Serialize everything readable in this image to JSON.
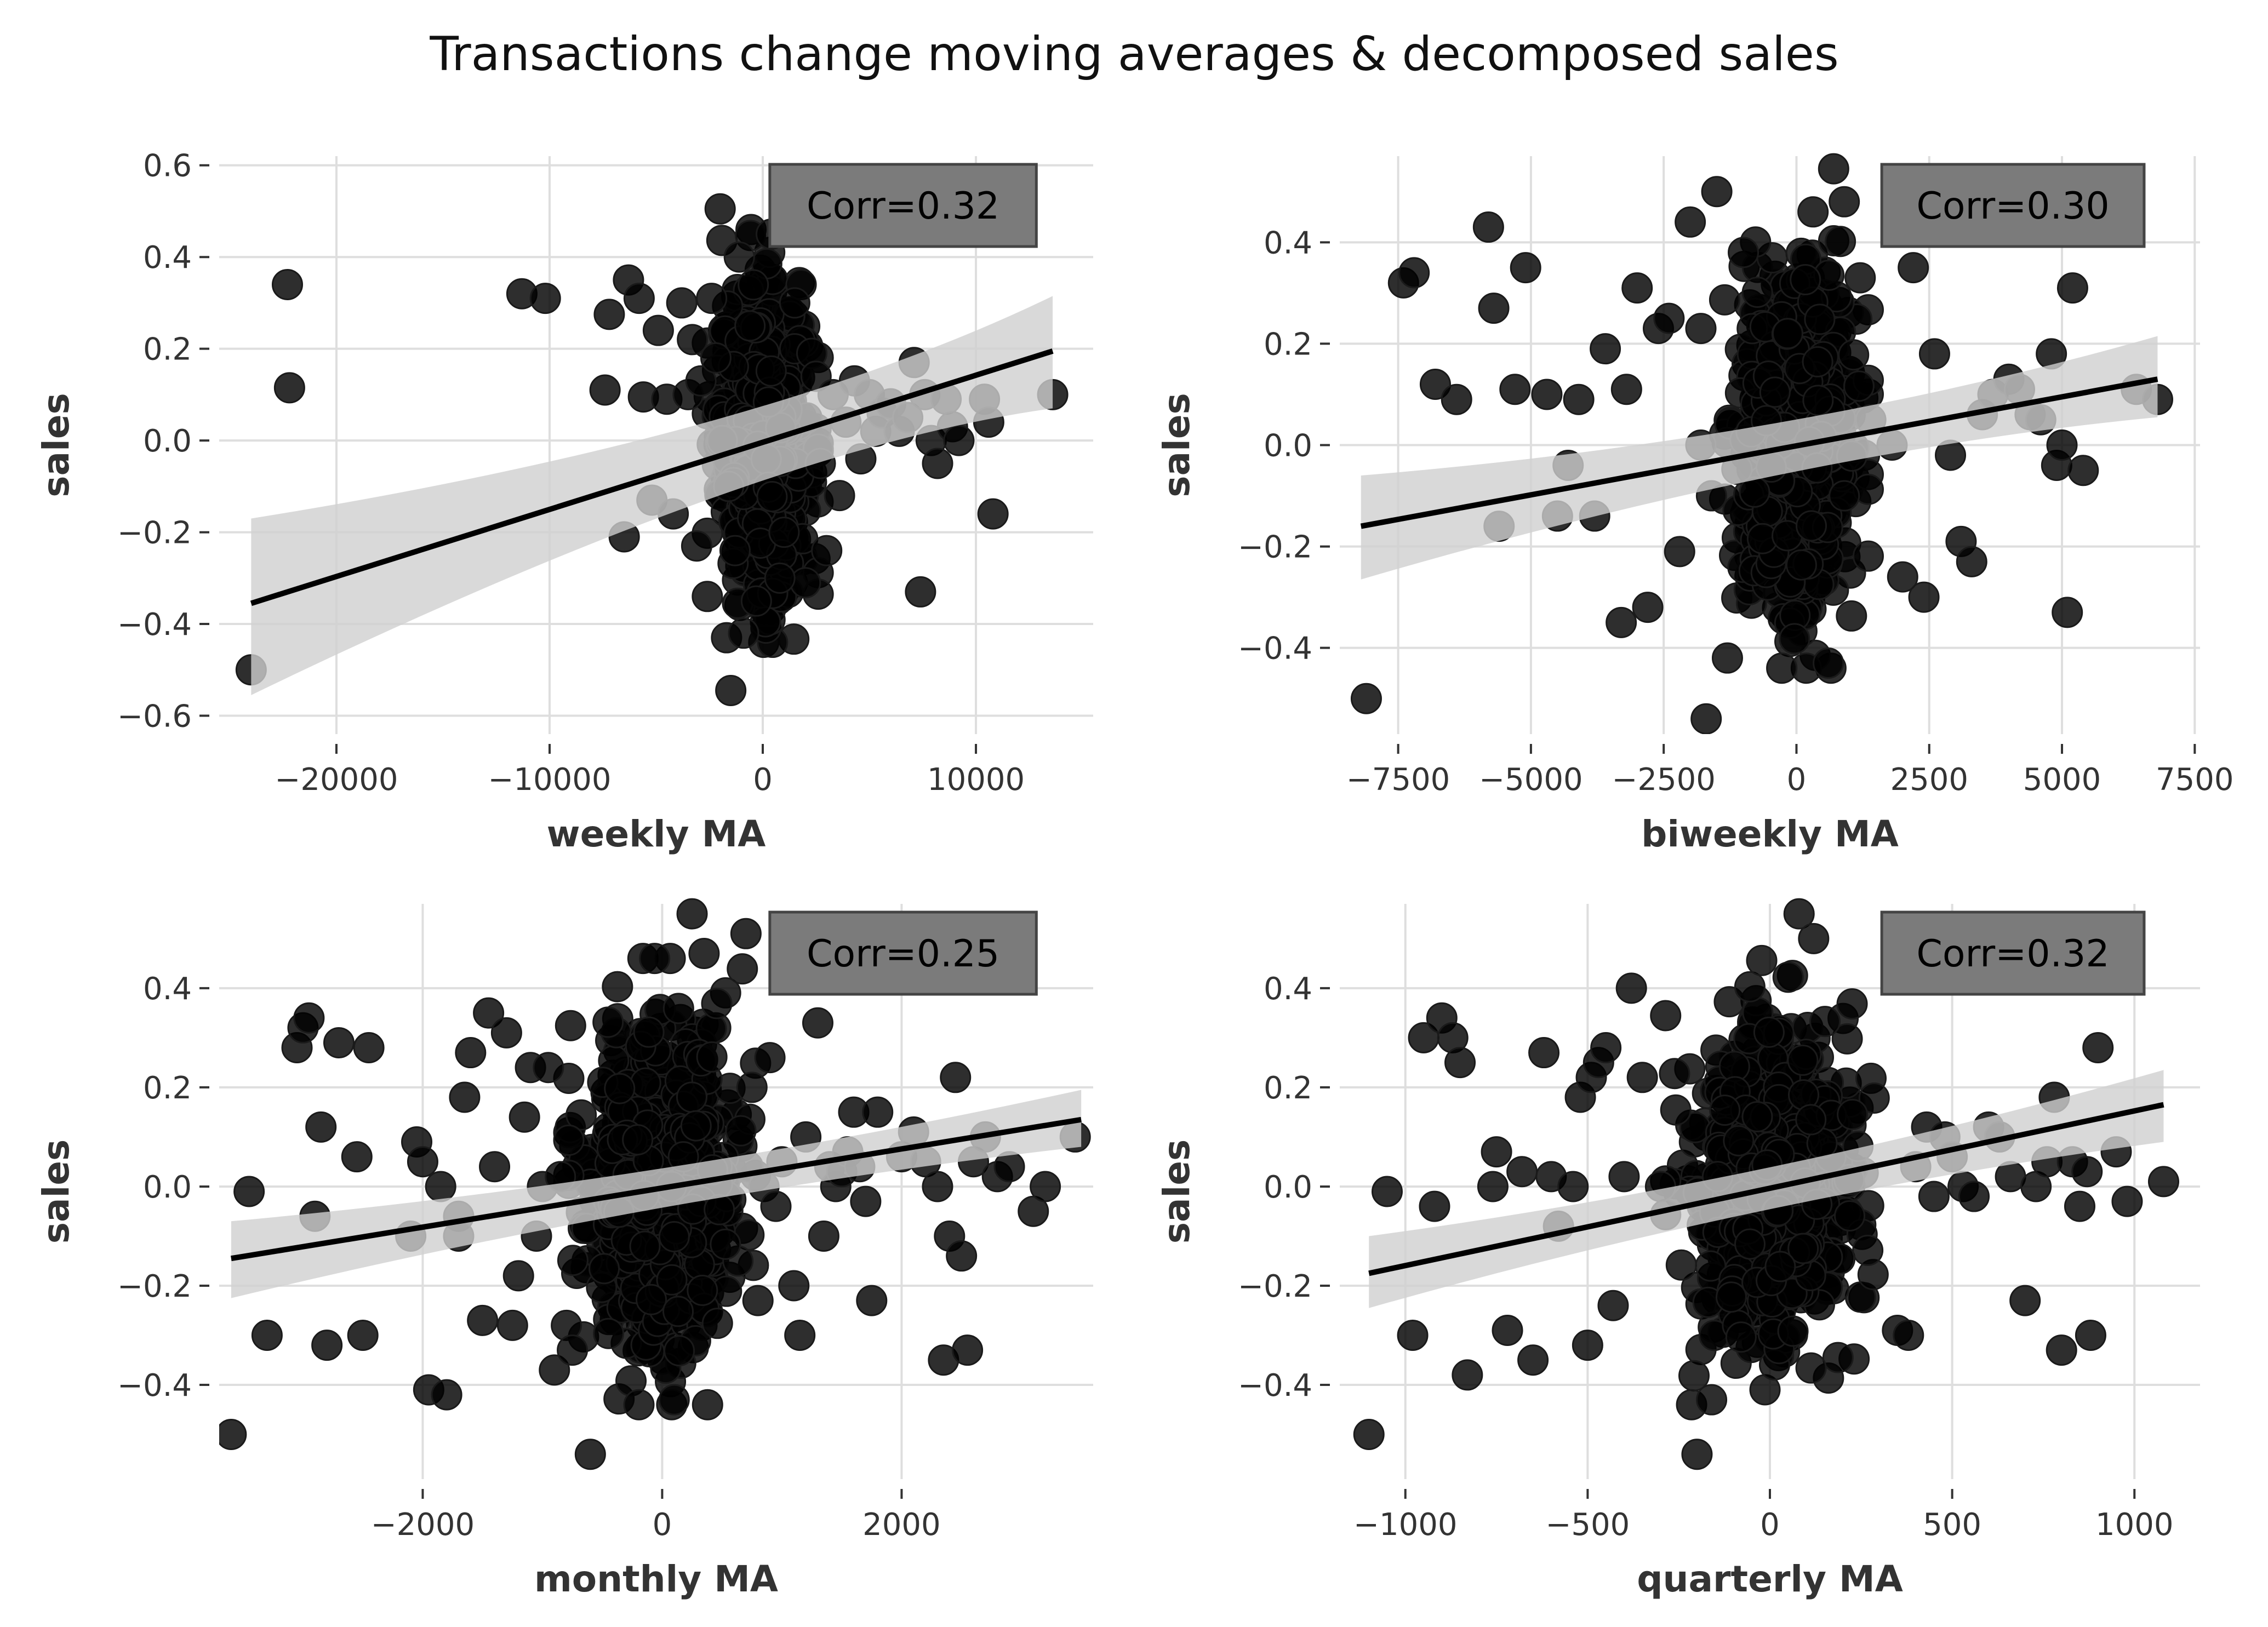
{
  "figure": {
    "title": "Transactions change moving averages & decomposed sales"
  },
  "chart_data": [
    {
      "type": "scatter",
      "id": "weekly",
      "xlabel": "weekly MA",
      "ylabel": "sales",
      "annotation": "Corr=0.32",
      "xlim": [
        -25500,
        15500
      ],
      "ylim": [
        -0.64,
        0.62
      ],
      "xticks": [
        -20000,
        -10000,
        0,
        10000
      ],
      "yticks": [
        -0.6,
        -0.4,
        -0.2,
        0.0,
        0.2,
        0.4,
        0.6
      ],
      "fit": {
        "x": [
          -24000,
          13600
        ],
        "y": [
          -0.355,
          0.195
        ],
        "band_lo": [
          -0.555,
          0.07
        ],
        "band_hi": [
          -0.17,
          0.315
        ]
      },
      "points": {
        "x": [
          -24000,
          -22300,
          -22200,
          -11300,
          -10200,
          -7400,
          -7200,
          -6500,
          -6300,
          -5800,
          -5600,
          -5200,
          -4900,
          -4500,
          -4200,
          -3800,
          -3500,
          -3300,
          -3100,
          -2900,
          -2600,
          -2400,
          -2200,
          -2000,
          -1700,
          -1500,
          -1300,
          -1100,
          -900,
          1100,
          1300,
          1500,
          1800,
          2000,
          2300,
          2500,
          2700,
          3000,
          3300,
          3600,
          3900,
          4300,
          4600,
          5000,
          5300,
          5600,
          6000,
          6400,
          6800,
          7100,
          7400,
          7600,
          7900,
          8200,
          8600,
          8900,
          9200,
          10400,
          10600,
          10800,
          13600,
          -1600,
          -1900,
          800,
          400,
          -300,
          -600,
          1000,
          1500
        ],
        "y": [
          -0.5,
          0.34,
          0.115,
          0.32,
          0.31,
          0.11,
          0.275,
          -0.21,
          0.35,
          0.31,
          0.095,
          -0.13,
          0.24,
          0.09,
          -0.16,
          0.3,
          0.1,
          0.22,
          -0.23,
          0.13,
          -0.34,
          0.31,
          0.18,
          0.505,
          -0.43,
          -0.545,
          -0.24,
          0.4,
          -0.42,
          0.545,
          0.53,
          0.2,
          0.34,
          -0.31,
          0.19,
          0.14,
          -0.05,
          -0.24,
          0.1,
          -0.12,
          0.04,
          0.13,
          -0.04,
          0.1,
          0.02,
          0.06,
          0.08,
          0.02,
          0.05,
          0.17,
          -0.33,
          0.1,
          0.0,
          -0.05,
          0.09,
          0.03,
          0.0,
          0.09,
          0.04,
          -0.16,
          0.1,
          -0.1,
          0.0,
          -0.3,
          0.45,
          -0.35,
          0.25,
          -0.2,
          0.3
        ],
        "cluster": {
          "n": 700,
          "x_sd": 1000,
          "y_sd": 0.16
        }
      }
    },
    {
      "type": "scatter",
      "id": "biweekly",
      "xlabel": "biweekly MA",
      "ylabel": "sales",
      "annotation": "Corr=0.30",
      "xlim": [
        -8600,
        7600
      ],
      "ylim": [
        -0.57,
        0.57
      ],
      "xticks": [
        -7500,
        -5000,
        -2500,
        0,
        2500,
        5000,
        7500
      ],
      "yticks": [
        -0.4,
        -0.2,
        0.0,
        0.2,
        0.4
      ],
      "fit": {
        "x": [
          -8200,
          6800
        ],
        "y": [
          -0.16,
          0.13
        ],
        "band_lo": [
          -0.265,
          0.055
        ],
        "band_hi": [
          -0.06,
          0.215
        ]
      },
      "points": {
        "x": [
          -8100,
          -7400,
          -7200,
          -6800,
          -6400,
          -5800,
          -5700,
          -5600,
          -5300,
          -5100,
          -4700,
          -4500,
          -4300,
          -4100,
          -3800,
          -3600,
          -3300,
          -3200,
          -3000,
          -2800,
          -2600,
          -2400,
          -2200,
          -2000,
          -1800,
          -1600,
          -1500,
          -1300,
          -1000,
          700,
          900,
          1200,
          1400,
          1800,
          2000,
          2200,
          2400,
          2600,
          2900,
          3100,
          3300,
          3500,
          3700,
          4000,
          4200,
          4400,
          4600,
          4800,
          4900,
          5000,
          5100,
          5200,
          5400,
          6400,
          6800,
          -1700,
          -1800,
          600,
          900
        ],
        "y": [
          -0.5,
          0.32,
          0.34,
          0.12,
          0.09,
          0.43,
          0.27,
          -0.16,
          0.11,
          0.35,
          0.1,
          -0.14,
          -0.04,
          0.09,
          -0.14,
          0.19,
          -0.35,
          0.11,
          0.31,
          -0.32,
          0.23,
          0.25,
          -0.21,
          0.44,
          0.0,
          -0.1,
          0.5,
          -0.42,
          0.38,
          0.545,
          0.48,
          0.33,
          0.05,
          0.0,
          -0.26,
          0.35,
          -0.3,
          0.18,
          -0.02,
          -0.19,
          -0.23,
          0.06,
          0.1,
          0.13,
          0.11,
          0.06,
          0.05,
          0.18,
          -0.04,
          0.0,
          -0.33,
          0.31,
          -0.05,
          0.11,
          0.09,
          -0.54,
          0.23,
          -0.43,
          -0.1
        ],
        "cluster": {
          "n": 700,
          "x_sd": 520,
          "y_sd": 0.16
        }
      }
    },
    {
      "type": "scatter",
      "id": "monthly",
      "xlabel": "monthly MA",
      "ylabel": "sales",
      "annotation": "Corr=0.25",
      "xlim": [
        -3700,
        3600
      ],
      "ylim": [
        -0.59,
        0.57
      ],
      "xticks": [
        -2000,
        0,
        2000
      ],
      "yticks": [
        -0.4,
        -0.2,
        0.0,
        0.2,
        0.4
      ],
      "fit": {
        "x": [
          -3600,
          3500
        ],
        "y": [
          -0.145,
          0.135
        ],
        "band_lo": [
          -0.225,
          0.08
        ],
        "band_hi": [
          -0.07,
          0.195
        ]
      },
      "points": {
        "x": [
          -3600,
          -3450,
          -3300,
          -3050,
          -3000,
          -2950,
          -2900,
          -2850,
          -2800,
          -2700,
          -2550,
          -2500,
          -2450,
          -2100,
          -2050,
          -2000,
          -1950,
          -1850,
          -1800,
          -1700,
          -1650,
          -1600,
          -1500,
          -1450,
          -1400,
          -1300,
          -1250,
          -1200,
          -1150,
          -1100,
          -1050,
          -1000,
          -950,
          -900,
          -850,
          -800,
          -750,
          -600,
          700,
          750,
          800,
          850,
          900,
          950,
          1000,
          1100,
          1150,
          1200,
          1300,
          1350,
          1400,
          1450,
          1500,
          1550,
          1600,
          1650,
          1700,
          1750,
          1800,
          2000,
          2100,
          2200,
          2300,
          2350,
          2400,
          2450,
          2500,
          2550,
          2600,
          2700,
          2800,
          2900,
          3100,
          3200,
          3450,
          -1700,
          100,
          250,
          350
        ],
        "y": [
          -0.5,
          -0.01,
          -0.3,
          0.28,
          0.32,
          0.34,
          -0.06,
          0.12,
          -0.32,
          0.29,
          0.06,
          -0.3,
          0.28,
          -0.1,
          0.09,
          0.05,
          -0.41,
          0.0,
          -0.42,
          -0.06,
          0.18,
          0.27,
          -0.27,
          0.35,
          0.04,
          0.31,
          -0.28,
          -0.18,
          0.14,
          0.24,
          -0.1,
          0.0,
          0.24,
          -0.37,
          0.02,
          -0.28,
          -0.33,
          -0.54,
          0.51,
          0.2,
          -0.23,
          0.0,
          0.26,
          -0.04,
          0.05,
          -0.2,
          -0.3,
          0.1,
          0.33,
          -0.1,
          0.04,
          0.0,
          0.03,
          0.07,
          0.15,
          0.04,
          -0.03,
          -0.23,
          0.15,
          0.06,
          0.11,
          0.05,
          0.0,
          -0.35,
          -0.1,
          0.22,
          -0.14,
          -0.33,
          0.05,
          0.1,
          0.02,
          0.04,
          -0.05,
          0.0,
          0.1,
          -0.1,
          -0.43,
          0.55,
          0.47
        ],
        "cluster": {
          "n": 700,
          "x_sd": 300,
          "y_sd": 0.16
        }
      }
    },
    {
      "type": "scatter",
      "id": "quarterly",
      "xlabel": "quarterly MA",
      "ylabel": "sales",
      "annotation": "Corr=0.32",
      "xlim": [
        -1180,
        1180
      ],
      "ylim": [
        -0.59,
        0.57
      ],
      "xticks": [
        -1000,
        -500,
        0,
        500,
        1000
      ],
      "yticks": [
        -0.4,
        -0.2,
        0.0,
        0.2,
        0.4
      ],
      "fit": {
        "x": [
          -1100,
          1080
        ],
        "y": [
          -0.175,
          0.165
        ],
        "band_lo": [
          -0.245,
          0.09
        ],
        "band_hi": [
          -0.1,
          0.235
        ]
      },
      "points": {
        "x": [
          -1100,
          -1050,
          -980,
          -950,
          -920,
          -900,
          -870,
          -850,
          -830,
          -760,
          -750,
          -720,
          -680,
          -650,
          -620,
          -600,
          -580,
          -540,
          -520,
          -500,
          -490,
          -470,
          -450,
          -430,
          -400,
          -380,
          -350,
          -300,
          350,
          380,
          400,
          430,
          450,
          480,
          500,
          530,
          560,
          600,
          630,
          660,
          700,
          730,
          760,
          780,
          800,
          830,
          850,
          870,
          880,
          900,
          950,
          980,
          1080,
          -200,
          -160,
          80,
          120
        ],
        "y": [
          -0.5,
          -0.01,
          -0.3,
          0.3,
          -0.04,
          0.34,
          0.3,
          0.25,
          -0.38,
          0.0,
          0.07,
          -0.29,
          0.03,
          -0.35,
          0.27,
          0.02,
          -0.08,
          0.0,
          0.18,
          -0.32,
          0.22,
          0.25,
          0.28,
          -0.24,
          0.02,
          0.4,
          0.22,
          0.0,
          -0.29,
          -0.3,
          0.04,
          0.12,
          -0.02,
          0.1,
          0.06,
          0.0,
          -0.02,
          0.12,
          0.1,
          0.02,
          -0.23,
          0.0,
          0.05,
          0.18,
          -0.33,
          0.05,
          -0.04,
          0.03,
          -0.3,
          0.28,
          0.07,
          -0.03,
          0.01,
          -0.54,
          -0.43,
          0.55,
          0.5
        ],
        "cluster": {
          "n": 700,
          "x_sd": 110,
          "y_sd": 0.16
        }
      }
    }
  ]
}
